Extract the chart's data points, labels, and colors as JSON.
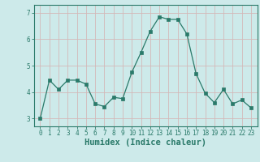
{
  "x": [
    0,
    1,
    2,
    3,
    4,
    5,
    6,
    7,
    8,
    9,
    10,
    11,
    12,
    13,
    14,
    15,
    16,
    17,
    18,
    19,
    20,
    21,
    22,
    23
  ],
  "y": [
    3.0,
    4.45,
    4.1,
    4.45,
    4.45,
    4.3,
    3.55,
    3.45,
    3.8,
    3.75,
    4.75,
    5.5,
    6.3,
    6.85,
    6.75,
    6.75,
    6.2,
    4.7,
    3.95,
    3.6,
    4.1,
    3.55,
    3.7,
    3.4
  ],
  "line_color": "#2a7a6a",
  "marker": "s",
  "marker_size": 2.5,
  "bg_color": "#cdeaea",
  "grid_color": "#c0d8d8",
  "xlabel": "Humidex (Indice chaleur)",
  "xlabel_fontsize": 7.5,
  "ylim": [
    2.7,
    7.3
  ],
  "yticks": [
    3,
    4,
    5,
    6,
    7
  ],
  "xticks": [
    0,
    1,
    2,
    3,
    4,
    5,
    6,
    7,
    8,
    9,
    10,
    11,
    12,
    13,
    14,
    15,
    16,
    17,
    18,
    19,
    20,
    21,
    22,
    23
  ],
  "tick_label_fontsize": 5.5
}
